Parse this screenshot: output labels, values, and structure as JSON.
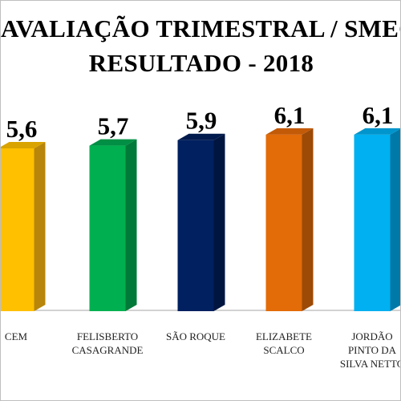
{
  "chart_data": {
    "type": "bar",
    "title_lines": [
      "AVALIAÇÃO TRIMESTRAL / SMEC",
      "RESULTADO - 2018"
    ],
    "categories": [
      [
        "CEM"
      ],
      [
        "FELISBERTO",
        "CASAGRANDE"
      ],
      [
        "SÃO ROQUE"
      ],
      [
        "ELIZABETE",
        "SCALCO"
      ],
      [
        "JORDÃO",
        "PINTO DA",
        "SILVA NETTO"
      ]
    ],
    "values": [
      5.6,
      5.7,
      5.9,
      6.1,
      6.1
    ],
    "value_labels": [
      "5,6",
      "5,7",
      "5,9",
      "6,1",
      "6,1"
    ],
    "bar_colors": [
      "#FFC000",
      "#00B050",
      "#002060",
      "#E36C09",
      "#00B0F0"
    ],
    "bar_side_colors": [
      "#B8860B",
      "#007A38",
      "#00153F",
      "#9C4A06",
      "#0079A8"
    ],
    "bar_top_colors": [
      "#D9A300",
      "#008F44",
      "#001A4D",
      "#C25A08",
      "#0095CC"
    ],
    "ylim": [
      0,
      6.6
    ],
    "grid": false,
    "legend": "none"
  }
}
